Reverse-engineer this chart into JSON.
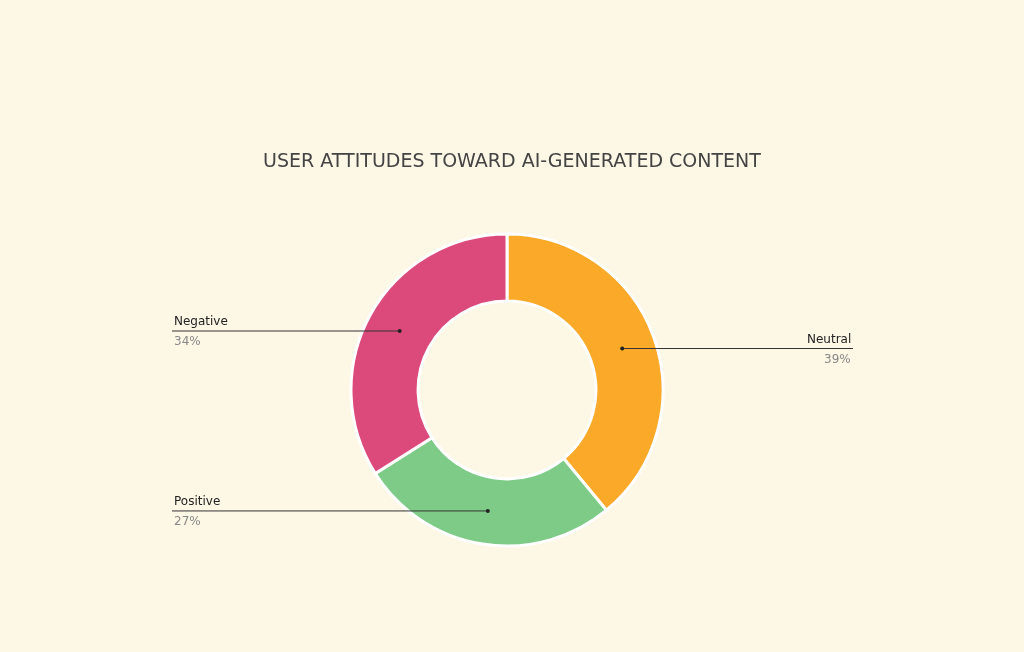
{
  "chart_data": {
    "type": "donut",
    "title": "USER ATTITUDES TOWARD AI-GENERATED CONTENT",
    "categories": [
      "Neutral",
      "Positive",
      "Negative"
    ],
    "values": [
      39,
      27,
      34
    ],
    "colors": [
      "#fba928",
      "#7ecb88",
      "#dc4a7c"
    ],
    "value_labels": [
      "39%",
      "27%",
      "34%"
    ]
  }
}
